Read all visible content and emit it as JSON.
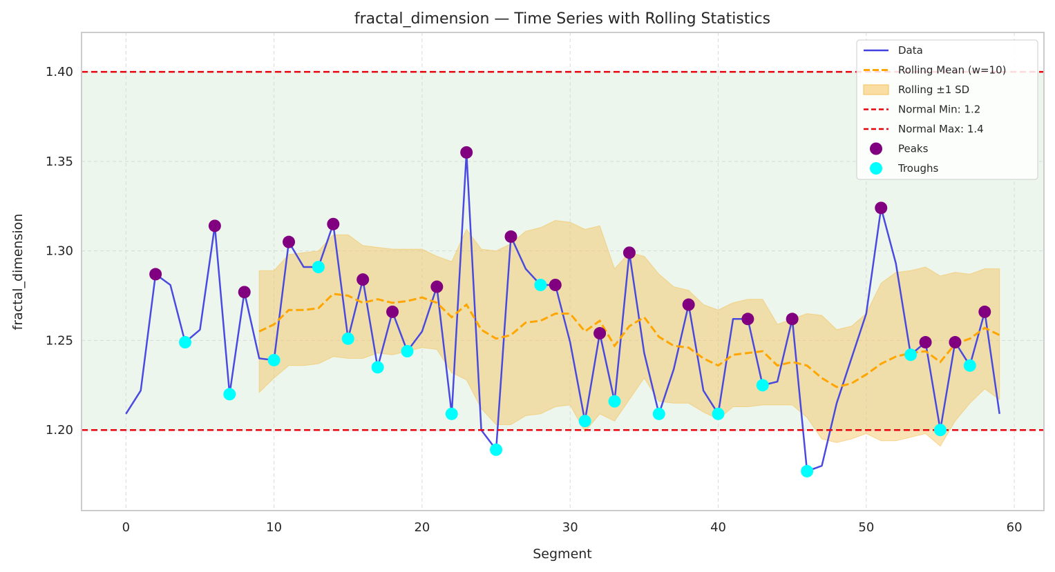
{
  "chart_data": {
    "type": "line",
    "title": "fractal_dimension — Time Series with Rolling Statistics",
    "xlabel": "Segment",
    "ylabel": "fractal_dimension",
    "xlim": [
      -3,
      62
    ],
    "ylim": [
      1.155,
      1.422
    ],
    "xticks": [
      0,
      10,
      20,
      30,
      40,
      50,
      60
    ],
    "yticks": [
      1.2,
      1.25,
      1.3,
      1.35,
      1.4
    ],
    "ytick_labels": [
      "1.20",
      "1.25",
      "1.30",
      "1.35",
      "1.40"
    ],
    "grid": true,
    "legend_position": "top-right",
    "normal_band": [
      1.2,
      1.4
    ],
    "series": [
      {
        "name": "Data",
        "color": "#4040e0",
        "x": [
          0,
          1,
          2,
          3,
          4,
          5,
          6,
          7,
          8,
          9,
          10,
          11,
          12,
          13,
          14,
          15,
          16,
          17,
          18,
          19,
          20,
          21,
          22,
          23,
          24,
          25,
          26,
          27,
          28,
          29,
          30,
          31,
          32,
          33,
          34,
          35,
          36,
          37,
          38,
          39,
          40,
          41,
          42,
          43,
          44,
          45,
          46,
          47,
          48,
          49,
          50,
          51,
          52,
          53,
          54,
          55,
          56,
          57,
          58,
          59
        ],
        "y": [
          1.209,
          1.222,
          1.287,
          1.281,
          1.249,
          1.256,
          1.314,
          1.22,
          1.277,
          1.24,
          1.239,
          1.305,
          1.291,
          1.291,
          1.315,
          1.251,
          1.284,
          1.235,
          1.266,
          1.244,
          1.255,
          1.28,
          1.209,
          1.355,
          1.2,
          1.189,
          1.308,
          1.29,
          1.281,
          1.281,
          1.249,
          1.205,
          1.254,
          1.216,
          1.299,
          1.243,
          1.209,
          1.234,
          1.27,
          1.222,
          1.209,
          1.262,
          1.262,
          1.225,
          1.227,
          1.262,
          1.177,
          1.18,
          1.215,
          1.24,
          1.265,
          1.324,
          1.293,
          1.242,
          1.249,
          1.2,
          1.249,
          1.236,
          1.266,
          1.209
        ]
      },
      {
        "name": "Rolling Mean (w=10)",
        "color": "#ffa500",
        "x": [
          9,
          10,
          11,
          12,
          13,
          14,
          15,
          16,
          17,
          18,
          19,
          20,
          21,
          22,
          23,
          24,
          25,
          26,
          27,
          28,
          29,
          30,
          31,
          32,
          33,
          34,
          35,
          36,
          37,
          38,
          39,
          40,
          41,
          42,
          43,
          44,
          45,
          46,
          47,
          48,
          49,
          50,
          51,
          52,
          53,
          54,
          55,
          56,
          57,
          58,
          59
        ],
        "y": [
          1.255,
          1.259,
          1.267,
          1.267,
          1.268,
          1.276,
          1.275,
          1.271,
          1.273,
          1.271,
          1.272,
          1.274,
          1.271,
          1.263,
          1.27,
          1.256,
          1.251,
          1.253,
          1.26,
          1.261,
          1.265,
          1.265,
          1.255,
          1.261,
          1.247,
          1.258,
          1.263,
          1.252,
          1.247,
          1.246,
          1.24,
          1.236,
          1.242,
          1.243,
          1.244,
          1.236,
          1.238,
          1.236,
          1.229,
          1.224,
          1.226,
          1.231,
          1.237,
          1.241,
          1.243,
          1.244,
          1.238,
          1.248,
          1.251,
          1.257,
          1.253
        ]
      },
      {
        "name": "Rolling ±1 SD",
        "color": "#f5c15a",
        "x": [
          9,
          10,
          11,
          12,
          13,
          14,
          15,
          16,
          17,
          18,
          19,
          20,
          21,
          22,
          23,
          24,
          25,
          26,
          27,
          28,
          29,
          30,
          31,
          32,
          33,
          34,
          35,
          36,
          37,
          38,
          39,
          40,
          41,
          42,
          43,
          44,
          45,
          46,
          47,
          48,
          49,
          50,
          51,
          52,
          53,
          54,
          55,
          56,
          57,
          58,
          59
        ],
        "upper": [
          1.289,
          1.289,
          1.298,
          1.299,
          1.3,
          1.309,
          1.309,
          1.303,
          1.302,
          1.301,
          1.301,
          1.301,
          1.297,
          1.294,
          1.312,
          1.301,
          1.3,
          1.304,
          1.311,
          1.313,
          1.317,
          1.316,
          1.312,
          1.314,
          1.29,
          1.299,
          1.297,
          1.287,
          1.28,
          1.278,
          1.27,
          1.267,
          1.271,
          1.273,
          1.273,
          1.259,
          1.262,
          1.265,
          1.264,
          1.256,
          1.258,
          1.265,
          1.282,
          1.288,
          1.289,
          1.291,
          1.286,
          1.288,
          1.287,
          1.29,
          1.29
        ],
        "lower": [
          1.221,
          1.229,
          1.236,
          1.236,
          1.237,
          1.241,
          1.24,
          1.24,
          1.243,
          1.242,
          1.244,
          1.246,
          1.245,
          1.232,
          1.228,
          1.212,
          1.203,
          1.203,
          1.208,
          1.209,
          1.213,
          1.214,
          1.199,
          1.209,
          1.205,
          1.217,
          1.229,
          1.216,
          1.215,
          1.215,
          1.21,
          1.206,
          1.213,
          1.213,
          1.214,
          1.214,
          1.214,
          1.207,
          1.195,
          1.193,
          1.195,
          1.198,
          1.194,
          1.194,
          1.196,
          1.198,
          1.191,
          1.205,
          1.215,
          1.223,
          1.217
        ]
      },
      {
        "name": "Normal Min: 1.2",
        "color": "#e8000b",
        "value": 1.2
      },
      {
        "name": "Normal Max: 1.4",
        "color": "#e8000b",
        "value": 1.4
      },
      {
        "name": "Peaks",
        "color": "#800080",
        "x": [
          2,
          6,
          8,
          11,
          14,
          16,
          18,
          21,
          23,
          26,
          29,
          32,
          34,
          38,
          42,
          45,
          51,
          54,
          56,
          58
        ],
        "y": [
          1.287,
          1.314,
          1.277,
          1.305,
          1.315,
          1.284,
          1.266,
          1.28,
          1.355,
          1.308,
          1.281,
          1.254,
          1.299,
          1.27,
          1.262,
          1.262,
          1.324,
          1.249,
          1.249,
          1.266
        ]
      },
      {
        "name": "Troughs",
        "color": "#00ffff",
        "x": [
          4,
          7,
          10,
          13,
          15,
          17,
          19,
          22,
          25,
          28,
          31,
          33,
          36,
          40,
          43,
          46,
          53,
          55,
          57
        ],
        "y": [
          1.249,
          1.22,
          1.239,
          1.291,
          1.251,
          1.235,
          1.244,
          1.209,
          1.189,
          1.281,
          1.205,
          1.216,
          1.209,
          1.209,
          1.225,
          1.177,
          1.242,
          1.2,
          1.236
        ]
      }
    ]
  }
}
